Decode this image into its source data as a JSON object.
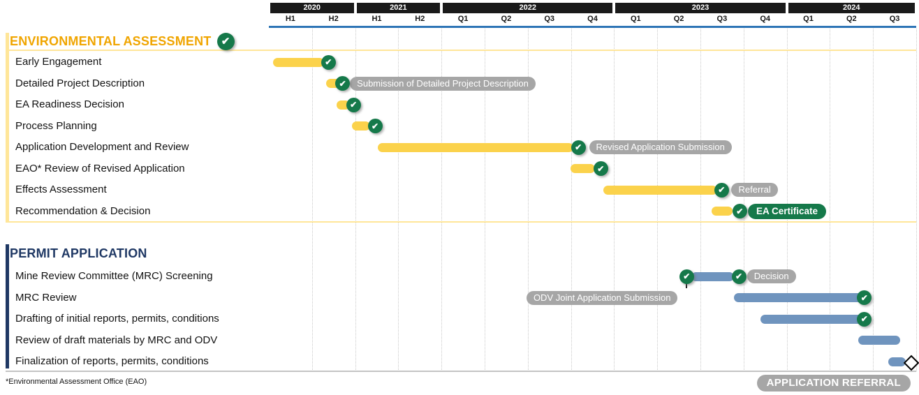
{
  "chart_data": {
    "type": "gantt",
    "title": "",
    "time_axis": {
      "years": [
        {
          "label": "2020",
          "periods": [
            "H1",
            "H2"
          ]
        },
        {
          "label": "2021",
          "periods": [
            "H1",
            "H2"
          ]
        },
        {
          "label": "2022",
          "periods": [
            "Q1",
            "Q2",
            "Q3",
            "Q4"
          ]
        },
        {
          "label": "2023",
          "periods": [
            "Q1",
            "Q2",
            "Q3",
            "Q4"
          ]
        },
        {
          "label": "2024",
          "periods": [
            "Q1",
            "Q2",
            "Q3"
          ]
        }
      ],
      "unit_note": "bar positions are in column units; one column = one period; 0 = start of 2020 H1; 15 = end of 2024 Q3"
    },
    "sections": [
      {
        "title": "ENVIRONMENTAL ASSESSMENT",
        "title_color": "#F0A500",
        "accent_color": "#FFE699",
        "bar_color": "#FBD24B",
        "title_check": true,
        "rows": [
          {
            "label": "Early Engagement",
            "bar": [
              0.1,
              1.28
            ],
            "checks": [
              1.38
            ]
          },
          {
            "label": "Detailed Project Description",
            "bar": [
              1.33,
              1.68
            ],
            "checks": [
              1.71
            ],
            "pill": {
              "text": "Submission of Detailed Project Description",
              "style": "gray",
              "at": 1.88
            }
          },
          {
            "label": "EA Readiness Decision",
            "bar": [
              1.57,
              1.88
            ],
            "checks": [
              1.96
            ]
          },
          {
            "label": "Process Planning",
            "bar": [
              1.93,
              2.35
            ],
            "checks": [
              2.46
            ]
          },
          {
            "label": "Application Development and Review",
            "bar": [
              2.52,
              7.06
            ],
            "checks": [
              7.17
            ],
            "pill": {
              "text": "Revised Application Submission",
              "style": "gray",
              "at": 7.42
            }
          },
          {
            "label": "EAO* Review of Revised Application",
            "bar": [
              6.99,
              7.56
            ],
            "checks": [
              7.69
            ]
          },
          {
            "label": "Effects Assessment",
            "bar": [
              7.75,
              10.39
            ],
            "checks": [
              10.49
            ],
            "pill": {
              "text": "Referral",
              "style": "gray",
              "at": 10.72
            }
          },
          {
            "label": "Recommendation & Decision",
            "bar": [
              10.26,
              10.74
            ],
            "checks": [
              10.91
            ],
            "pill": {
              "text": "EA Certificate",
              "style": "green-bold",
              "at": 11.1
            }
          }
        ]
      },
      {
        "title": "PERMIT APPLICATION",
        "title_color": "#1F3864",
        "accent_color": "#1F3864",
        "bar_color": "#6F94BE",
        "title_check": false,
        "rows": [
          {
            "label": "Mine Review Committee (MRC) Screening",
            "bar": [
              9.79,
              10.78
            ],
            "checks": [
              9.68,
              10.89
            ],
            "tick": 9.68,
            "pill": {
              "text": "Decision",
              "style": "gray",
              "at": 11.08
            }
          },
          {
            "label": "MRC Review",
            "bar": [
              10.78,
              13.79
            ],
            "checks": [
              13.8
            ],
            "pill": {
              "text": "ODV Joint Application Submission",
              "style": "gray",
              "at": 5.97
            }
          },
          {
            "label": "Drafting of initial reports, permits, conditions",
            "bar": [
              11.39,
              13.79
            ],
            "checks": [
              13.8
            ]
          },
          {
            "label": "Review of draft materials by MRC and ODV",
            "bar": [
              13.66,
              14.63
            ],
            "checks": []
          },
          {
            "label": "Finalization of reports, permits, conditions",
            "bar": [
              14.35,
              14.76
            ],
            "checks": [],
            "diamond": 14.85
          }
        ]
      }
    ],
    "colors": {
      "check_green": "#15794A",
      "pill_gray": "#A6A6A6",
      "header_bar_black": "#1A1A1A",
      "header_line_blue": "#2E75B6",
      "gridline_gray": "#C9C9C9",
      "bottom_border_gray": "#C4C4C4"
    },
    "footnote": "*Environmental Assessment Office (EAO)",
    "referral_badge": "APPLICATION REFERRAL"
  }
}
